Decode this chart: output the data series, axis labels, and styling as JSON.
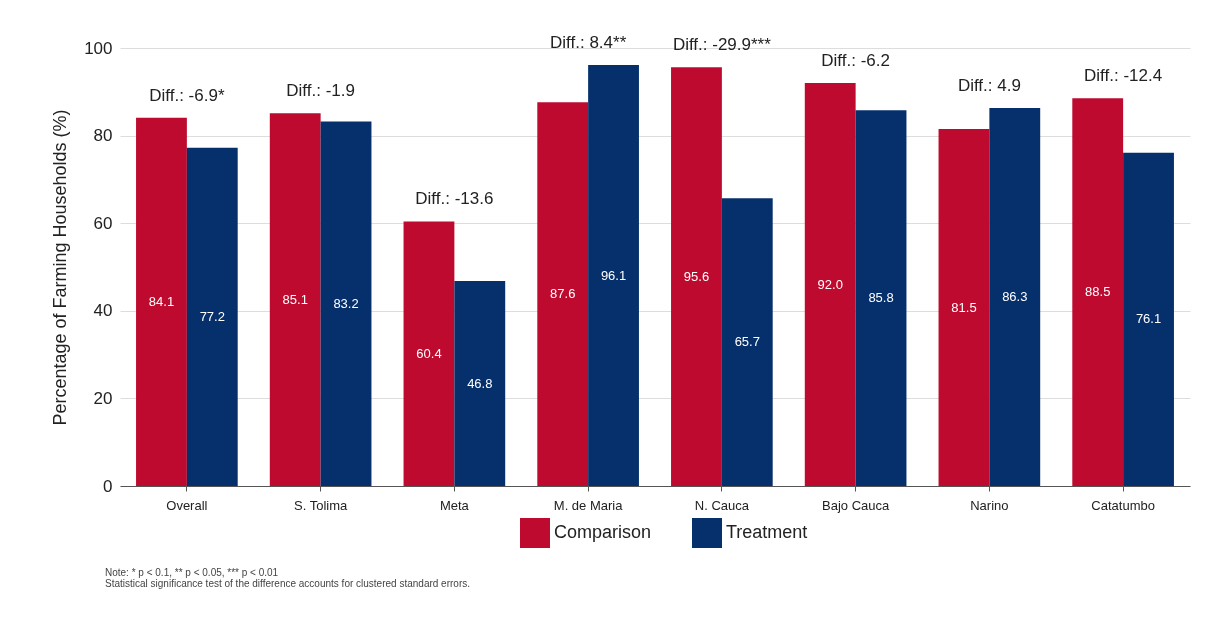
{
  "chart_data": {
    "type": "bar",
    "ylabel": "Percentage of Farming Households (%)",
    "categories": [
      "Overall",
      "S. Tolima",
      "Meta",
      "M. de Maria",
      "N. Cauca",
      "Bajo Cauca",
      "Narino",
      "Catatumbo"
    ],
    "series": [
      {
        "name": "Comparison",
        "color": "#be0a2f",
        "values": [
          84.1,
          85.1,
          60.4,
          87.6,
          95.6,
          92.0,
          81.5,
          88.5
        ]
      },
      {
        "name": "Treatment",
        "color": "#06306c",
        "values": [
          77.2,
          83.2,
          46.8,
          96.1,
          65.7,
          85.8,
          86.3,
          76.1
        ]
      }
    ],
    "ylim": [
      0,
      100
    ],
    "yticks": [
      0,
      20,
      40,
      60,
      80,
      100
    ],
    "grid": "y",
    "legend": "bottom",
    "value_labels": [
      [
        "84.1",
        "85.1",
        "60.4",
        "87.6",
        "95.6",
        "92.0",
        "81.5",
        "88.5"
      ],
      [
        "77.2",
        "83.2",
        "46.8",
        "96.1",
        "65.7",
        "85.8",
        "86.3",
        "76.1"
      ]
    ],
    "annotations": [
      {
        "text": "Diff.: -6.9*",
        "x": "Overall",
        "y": 84.1
      },
      {
        "text": "Diff.: -1.9",
        "x": "S. Tolima",
        "y": 85.1
      },
      {
        "text": "Diff.: -13.6",
        "x": "Meta",
        "y": 60.4
      },
      {
        "text": "Diff.: 8.4**",
        "x": "M. de Maria",
        "y": 96.1
      },
      {
        "text": "Diff.: -29.9***",
        "x": "N. Cauca",
        "y": 95.6
      },
      {
        "text": "Diff.: -6.2",
        "x": "Bajo Cauca",
        "y": 92.0
      },
      {
        "text": "Diff.: 4.9",
        "x": "Narino",
        "y": 86.3
      },
      {
        "text": "Diff.: -12.4",
        "x": "Catatumbo",
        "y": 88.5
      },
      "Note: * p < 0.1, ** p < 0.05, *** p < 0.01",
      "Statistical significance test of the difference accounts for clustered standard errors."
    ]
  }
}
